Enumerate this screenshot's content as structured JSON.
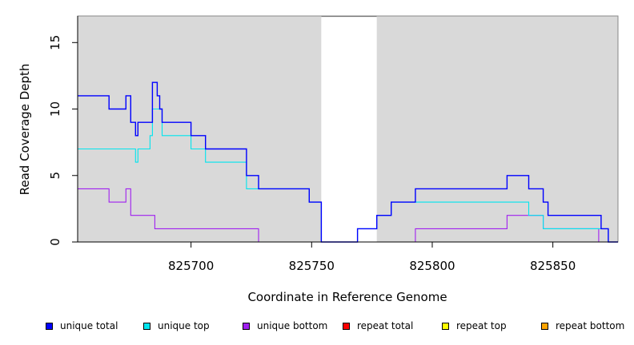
{
  "chart_data": {
    "type": "line",
    "title": "",
    "xlabel": "Coordinate in Reference Genome",
    "ylabel": "Read Coverage Depth",
    "xlim": [
      825653,
      825877
    ],
    "ylim": [
      0,
      17
    ],
    "x_ticks": [
      825700,
      825750,
      825800,
      825850
    ],
    "x_tick_labels": [
      "825700",
      "825750",
      "825800",
      "825850"
    ],
    "y_ticks": [
      0,
      5,
      10,
      15
    ],
    "y_tick_labels": [
      "0",
      "5",
      "10",
      "15"
    ],
    "grid": false,
    "background_color": "#d9d9d9",
    "gap_region": {
      "start": 825754,
      "end": 825777,
      "color": "#ffffff"
    },
    "legend_position": "bottom",
    "series": [
      {
        "name": "unique total",
        "color": "#0000ff",
        "steps": [
          [
            825653,
            11
          ],
          [
            825666,
            10
          ],
          [
            825673,
            11
          ],
          [
            825675,
            9
          ],
          [
            825677,
            8
          ],
          [
            825678,
            9
          ],
          [
            825684,
            12
          ],
          [
            825686,
            11
          ],
          [
            825687,
            10
          ],
          [
            825688,
            9
          ],
          [
            825700,
            8
          ],
          [
            825706,
            7
          ],
          [
            825723,
            5
          ],
          [
            825728,
            4
          ],
          [
            825749,
            3
          ],
          [
            825754,
            0
          ],
          [
            825769,
            1
          ],
          [
            825777,
            2
          ],
          [
            825783,
            3
          ],
          [
            825793,
            4
          ],
          [
            825831,
            5
          ],
          [
            825840,
            4
          ],
          [
            825846,
            3
          ],
          [
            825848,
            2
          ],
          [
            825870,
            1
          ],
          [
            825873,
            0
          ],
          [
            825877,
            0
          ]
        ]
      },
      {
        "name": "unique top",
        "color": "#00e5ee",
        "steps": [
          [
            825653,
            7
          ],
          [
            825677,
            6
          ],
          [
            825678,
            7
          ],
          [
            825683,
            8
          ],
          [
            825684,
            10
          ],
          [
            825688,
            8
          ],
          [
            825700,
            7
          ],
          [
            825706,
            6
          ],
          [
            825723,
            4
          ],
          [
            825749,
            3
          ],
          [
            825754,
            0
          ],
          [
            825769,
            1
          ],
          [
            825777,
            2
          ],
          [
            825783,
            3
          ],
          [
            825840,
            2
          ],
          [
            825846,
            1
          ],
          [
            825870,
            1
          ],
          [
            825873,
            0
          ],
          [
            825877,
            0
          ]
        ]
      },
      {
        "name": "unique bottom",
        "color": "#a020f0",
        "steps": [
          [
            825653,
            4
          ],
          [
            825666,
            3
          ],
          [
            825673,
            4
          ],
          [
            825675,
            2
          ],
          [
            825685,
            1
          ],
          [
            825728,
            0
          ],
          [
            825793,
            1
          ],
          [
            825831,
            2
          ],
          [
            825846,
            1
          ],
          [
            825869,
            0
          ],
          [
            825877,
            0
          ]
        ]
      },
      {
        "name": "repeat total",
        "color": "#ff0000",
        "steps": [
          [
            825653,
            0
          ],
          [
            825877,
            0
          ]
        ]
      },
      {
        "name": "repeat top",
        "color": "#ffff00",
        "steps": [
          [
            825653,
            0
          ],
          [
            825877,
            0
          ]
        ]
      },
      {
        "name": "repeat bottom",
        "color": "#ffa500",
        "steps": [
          [
            825653,
            0
          ],
          [
            825877,
            0
          ]
        ]
      }
    ]
  }
}
